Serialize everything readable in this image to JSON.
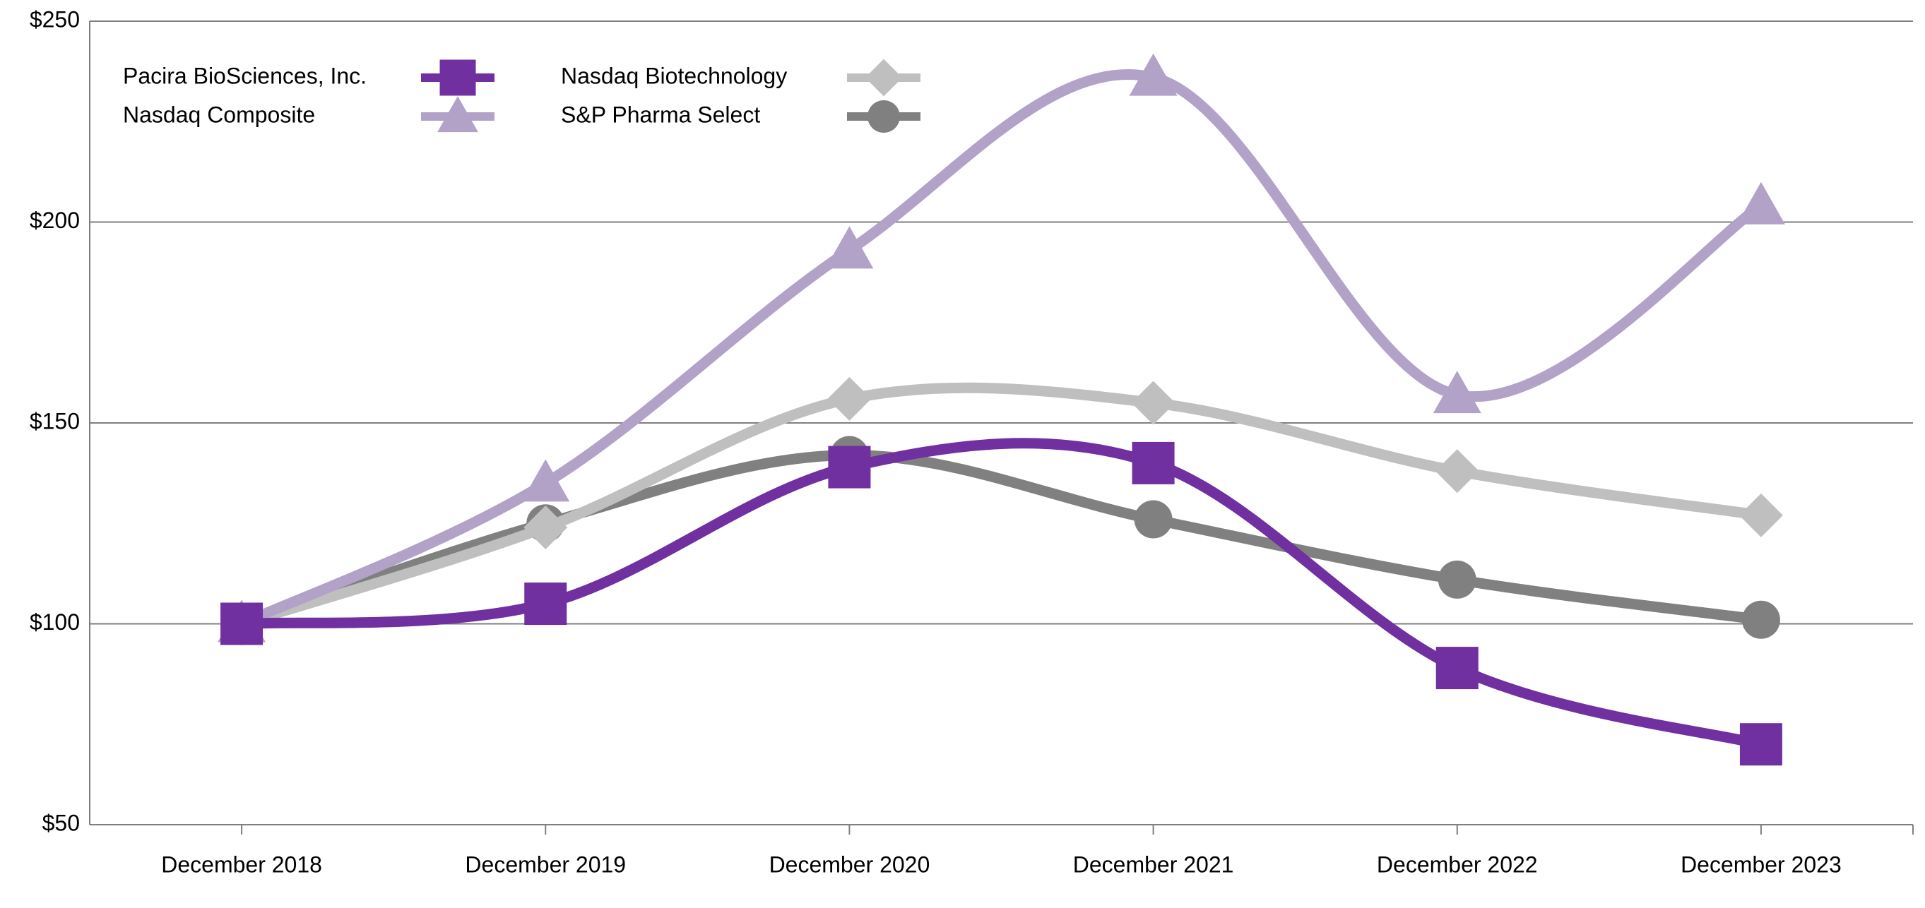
{
  "chart_data": {
    "type": "line",
    "categories": [
      "December 2018",
      "December 2019",
      "December 2020",
      "December 2021",
      "December 2022",
      "December 2023"
    ],
    "series": [
      {
        "name": "Pacira BioSciences, Inc.",
        "color": "#7030a0",
        "marker": "square",
        "values": [
          100,
          105,
          139,
          140,
          89,
          70
        ]
      },
      {
        "name": "Nasdaq Composite",
        "color": "#b3a2c7",
        "marker": "triangle",
        "values": [
          100,
          135,
          193,
          236,
          157,
          204
        ]
      },
      {
        "name": "Nasdaq Biotechnology",
        "color": "#bfbfbf",
        "marker": "diamond",
        "values": [
          100,
          124,
          156,
          155,
          138,
          127
        ]
      },
      {
        "name": "S&P Pharma Select",
        "color": "#808080",
        "marker": "circle",
        "values": [
          100,
          125,
          142,
          126,
          111,
          101
        ]
      }
    ],
    "ylim": [
      50,
      250
    ],
    "yticks": [
      {
        "value": 50,
        "label": "$50"
      },
      {
        "value": 100,
        "label": "$100"
      },
      {
        "value": 150,
        "label": "$150"
      },
      {
        "value": 200,
        "label": "$200"
      },
      {
        "value": 250,
        "label": "$250"
      }
    ],
    "grid": true,
    "smooth": true
  }
}
